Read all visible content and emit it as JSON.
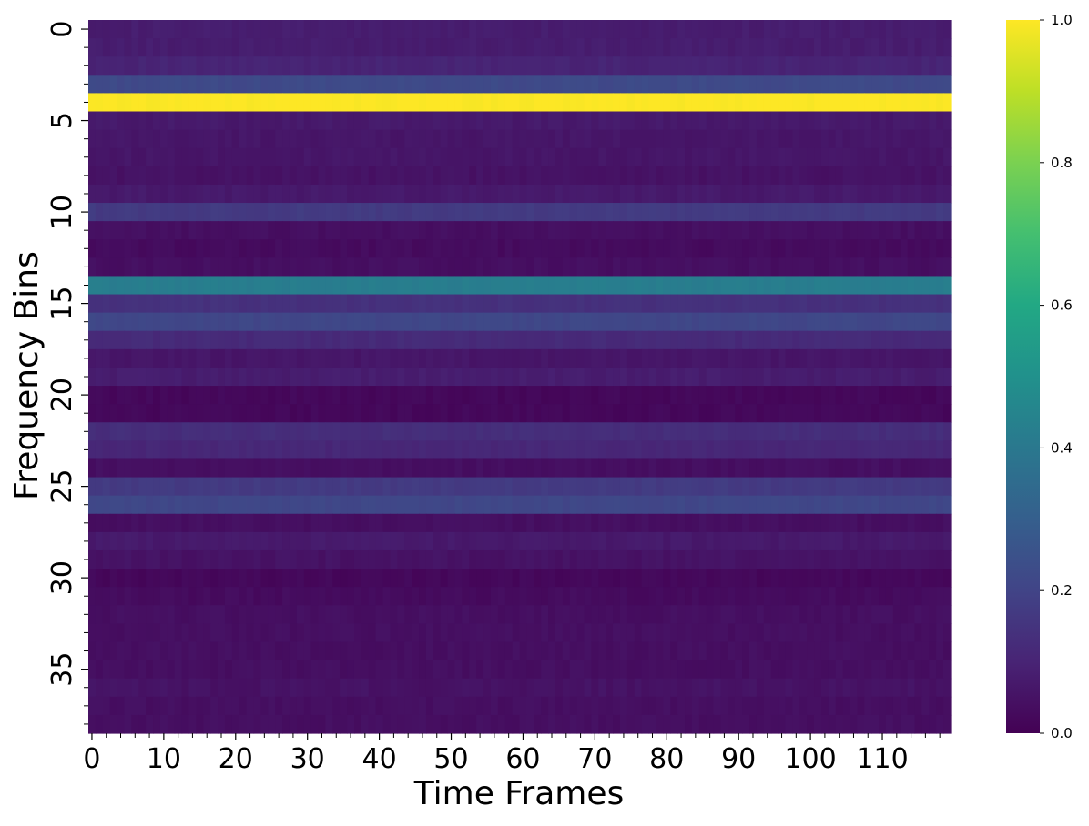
{
  "chart_data": {
    "type": "heatmap",
    "title": "",
    "xlabel": "Time Frames",
    "ylabel": "Frequency Bins",
    "n_time_frames": 120,
    "n_freq_bins": 39,
    "xlim": [
      0,
      120
    ],
    "ylim": [
      0,
      39
    ],
    "y_inverted": true,
    "x_ticks": [
      0,
      10,
      20,
      30,
      40,
      50,
      60,
      70,
      80,
      90,
      100,
      110
    ],
    "y_ticks": [
      0,
      5,
      10,
      15,
      20,
      25,
      30,
      35
    ],
    "x_minor_tick_step": 2,
    "y_minor_tick_step": 1,
    "colormap": "viridis",
    "colorbar": {
      "vmin": 0.0,
      "vmax": 1.0,
      "ticks": [
        "0.0",
        "0.2",
        "0.4",
        "0.6",
        "0.8",
        "1.0"
      ]
    },
    "grid": false,
    "row_values": [
      0.08,
      0.08,
      0.1,
      0.22,
      1.0,
      0.07,
      0.06,
      0.06,
      0.05,
      0.07,
      0.17,
      0.04,
      0.03,
      0.04,
      0.42,
      0.14,
      0.21,
      0.12,
      0.06,
      0.08,
      0.02,
      0.02,
      0.13,
      0.11,
      0.04,
      0.17,
      0.21,
      0.04,
      0.07,
      0.05,
      0.02,
      0.03,
      0.04,
      0.04,
      0.04,
      0.04,
      0.05,
      0.04,
      0.04
    ],
    "column_variation": 0.02
  }
}
